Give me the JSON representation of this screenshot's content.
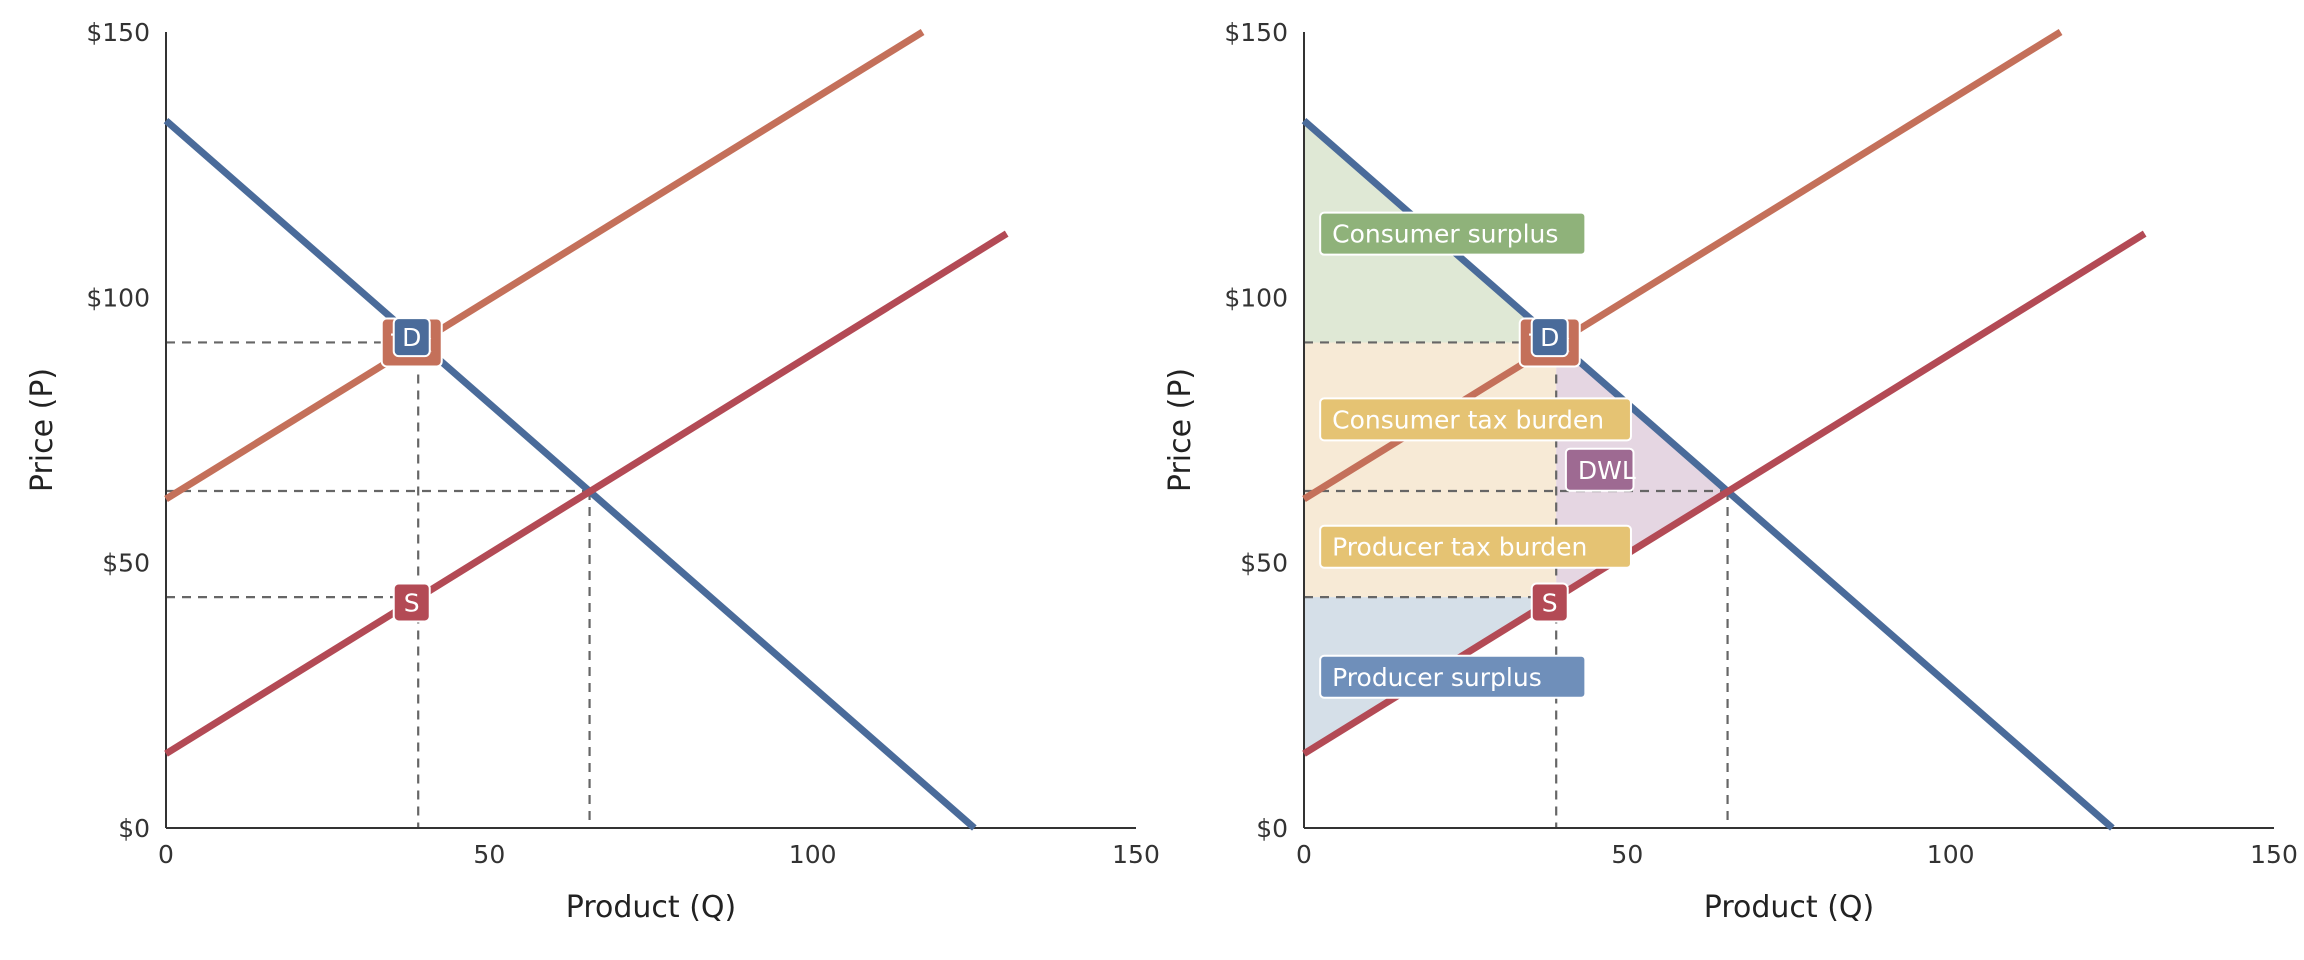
{
  "colors": {
    "demand": "#4a6b9a",
    "supply": "#b34a55",
    "supply_tax": "#c4705a",
    "axis": "#333333",
    "guide": "#666666",
    "consumer_surplus": "#8fb27a",
    "consumer_surplus_fill": "#dfe8d5",
    "tax_burden": "#e5c373",
    "tax_burden_fill": "#f7ead6",
    "dwl": "#9e6a92",
    "dwl_fill": "#e5d6e2",
    "producer_surplus": "#6f8fba",
    "producer_surplus_fill": "#d5dfe8"
  },
  "chart_data": [
    {
      "type": "line",
      "xlabel": "Product (Q)",
      "ylabel": "Price (P)",
      "xlim": [
        0,
        150
      ],
      "ylim": [
        0,
        150
      ],
      "x_ticks": [
        "0",
        "50",
        "100",
        "150"
      ],
      "x_tick_values": [
        0,
        50,
        100,
        150
      ],
      "y_ticks": [
        "$0",
        "$50",
        "$100",
        "$150"
      ],
      "y_tick_values": [
        0,
        50,
        100,
        150
      ],
      "series": [
        {
          "key": "demand",
          "x": [
            0,
            125
          ],
          "y": [
            133.3,
            0
          ]
        },
        {
          "key": "supply",
          "x": [
            0,
            130
          ],
          "y": [
            14,
            112
          ]
        },
        {
          "key": "supply_tax",
          "x": [
            0,
            117
          ],
          "y": [
            62,
            150
          ]
        }
      ],
      "guides": {
        "tax_q": 39,
        "equilibrium_q": 65.5,
        "consumer_price": 91.5,
        "equilibrium_price": 63.5,
        "producer_price": 43.5
      },
      "badges": [
        {
          "key": "supply_tax",
          "text": "Tax",
          "x": 38,
          "y": 91.5
        },
        {
          "key": "demand",
          "text": "D",
          "x": 38,
          "y": 92.5
        },
        {
          "key": "supply",
          "text": "S",
          "x": 38,
          "y": 42.5
        }
      ],
      "regions": []
    },
    {
      "type": "area",
      "xlabel": "Product (Q)",
      "ylabel": "Price (P)",
      "xlim": [
        0,
        150
      ],
      "ylim": [
        0,
        150
      ],
      "x_ticks": [
        "0",
        "50",
        "100",
        "150"
      ],
      "x_tick_values": [
        0,
        50,
        100,
        150
      ],
      "y_ticks": [
        "$0",
        "$50",
        "$100",
        "$150"
      ],
      "y_tick_values": [
        0,
        50,
        100,
        150
      ],
      "series": [
        {
          "key": "demand",
          "x": [
            0,
            125
          ],
          "y": [
            133.3,
            0
          ]
        },
        {
          "key": "supply",
          "x": [
            0,
            130
          ],
          "y": [
            14,
            112
          ]
        },
        {
          "key": "supply_tax",
          "x": [
            0,
            117
          ],
          "y": [
            62,
            150
          ]
        }
      ],
      "guides": {
        "tax_q": 39,
        "equilibrium_q": 65.5,
        "consumer_price": 91.5,
        "equilibrium_price": 63.5,
        "producer_price": 43.5
      },
      "badges": [
        {
          "key": "supply_tax",
          "text": "Tax",
          "x": 38,
          "y": 91.5
        },
        {
          "key": "demand",
          "text": "D",
          "x": 38,
          "y": 92.5
        },
        {
          "key": "supply",
          "text": "S",
          "x": 38,
          "y": 42.5
        }
      ],
      "regions": [
        {
          "key": "consumer_surplus",
          "label": "Consumer surplus",
          "points": [
            [
              0,
              133.3
            ],
            [
              39,
              91.5
            ],
            [
              0,
              91.5
            ]
          ],
          "label_at": [
            2.5,
            112
          ]
        },
        {
          "key": "tax_burden",
          "label": "Consumer tax burden",
          "points": [
            [
              0,
              91.5
            ],
            [
              39,
              91.5
            ],
            [
              39,
              63.5
            ],
            [
              0,
              63.5
            ]
          ],
          "label_at": [
            2.5,
            77
          ]
        },
        {
          "key": "tax_burden",
          "label": "Producer tax burden",
          "points": [
            [
              0,
              63.5
            ],
            [
              39,
              63.5
            ],
            [
              39,
              43.5
            ],
            [
              0,
              43.5
            ]
          ],
          "label_at": [
            2.5,
            53
          ]
        },
        {
          "key": "dwl",
          "label": "DWL",
          "points": [
            [
              39,
              91.5
            ],
            [
              65.5,
              63.5
            ],
            [
              39,
              43.5
            ]
          ],
          "label_at": [
            40.5,
            67.5
          ]
        },
        {
          "key": "producer_surplus",
          "label": "Producer surplus",
          "points": [
            [
              0,
              43.5
            ],
            [
              39,
              43.5
            ],
            [
              0,
              14
            ]
          ],
          "label_at": [
            2.5,
            28.5
          ]
        }
      ]
    }
  ]
}
